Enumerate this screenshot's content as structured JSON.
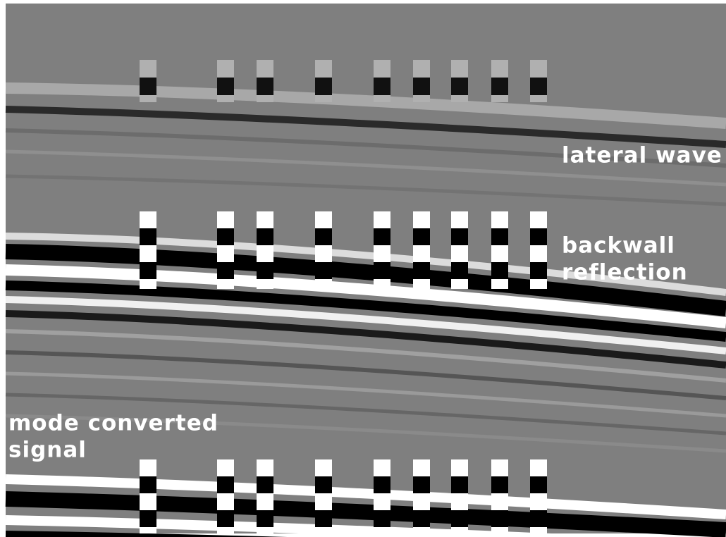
{
  "annotations": [
    {
      "lines": [
        "lateral wave"
      ]
    },
    {
      "lines": [
        "backwall",
        "reflection"
      ]
    },
    {
      "lines": [
        "mode converted",
        "signal"
      ]
    }
  ]
}
